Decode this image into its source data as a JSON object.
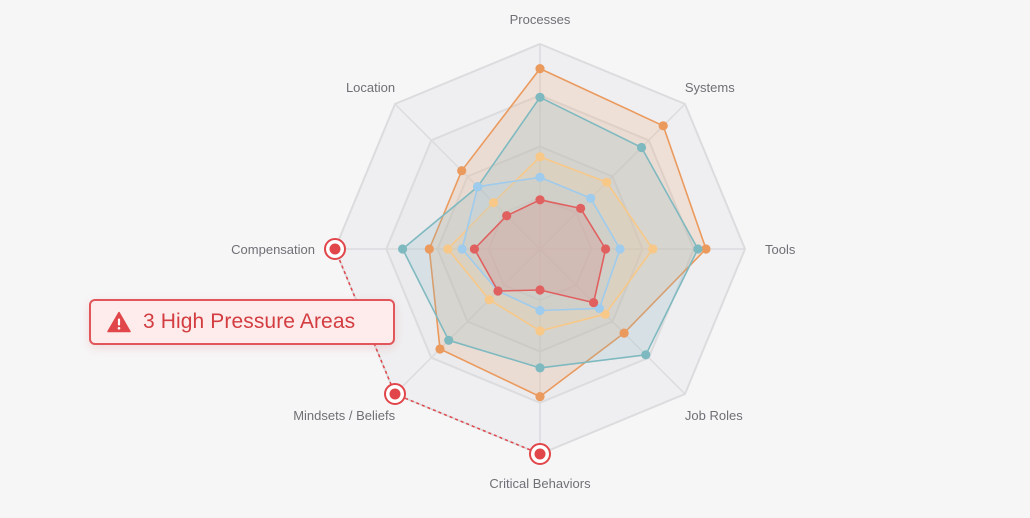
{
  "chart_data": {
    "type": "radar",
    "axes": [
      "Processes",
      "Systems",
      "Tools",
      "Job Roles",
      "Critical Behaviors",
      "Mindsets / Beliefs",
      "Compensation",
      "Location"
    ],
    "range": [
      0,
      100
    ],
    "rings": 4,
    "series": [
      {
        "color": "#eb9a5e",
        "values": [
          88,
          85,
          81,
          58,
          72,
          69,
          54,
          54
        ]
      },
      {
        "color": "#7fb9c0",
        "values": [
          74,
          70,
          77,
          73,
          58,
          63,
          67,
          43
        ]
      },
      {
        "color": "#f7c888",
        "values": [
          45,
          46,
          55,
          45,
          40,
          35,
          45,
          32
        ]
      },
      {
        "color": "#9fcbec",
        "values": [
          35,
          35,
          39,
          41,
          30,
          29,
          38,
          43
        ]
      },
      {
        "color": "#e06060",
        "values": [
          24,
          28,
          32,
          37,
          20,
          29,
          32,
          23
        ]
      }
    ],
    "high_pressure_axes": [
      "Compensation",
      "Mindsets / Beliefs",
      "Critical Behaviors"
    ]
  },
  "callout": {
    "text": "3 High Pressure Areas",
    "icon": "warning-triangle-icon"
  },
  "colors": {
    "grid_stroke": "#dcdcdf",
    "ring_fill": "#e6e6e8",
    "alert": "#e0464a",
    "axis_label": "#6f6f75",
    "background": "#f6f6f7"
  }
}
